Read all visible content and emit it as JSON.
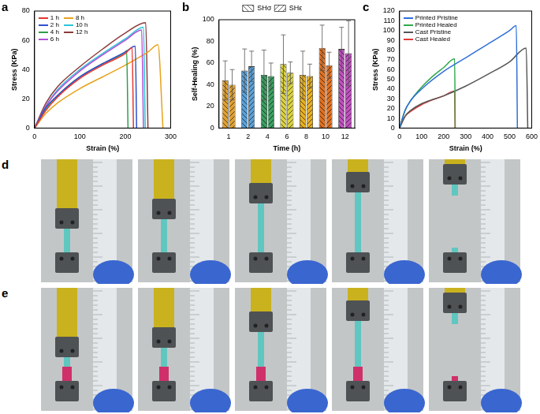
{
  "chart_data": [
    {
      "type": "line",
      "title": "a",
      "xlabel": "Strain (%)",
      "ylabel": "Stress (KPa)",
      "xlim": [
        0,
        300
      ],
      "xticks": [
        0,
        100,
        200,
        300
      ],
      "ylim": [
        0,
        80
      ],
      "yticks": [
        0,
        20,
        40,
        60,
        80
      ],
      "legend": "upper left",
      "series": [
        {
          "name": "1 h",
          "color": "#e8352e",
          "x": [
            0,
            25,
            50,
            100,
            150,
            200,
            215,
            218
          ],
          "values": [
            0,
            12,
            21,
            34,
            43,
            51,
            55,
            0
          ]
        },
        {
          "name": "2 h",
          "color": "#2f4fd0",
          "x": [
            0,
            25,
            50,
            100,
            150,
            200,
            222,
            225
          ],
          "values": [
            0,
            14,
            22,
            35,
            44,
            52,
            56,
            0
          ]
        },
        {
          "name": "4 h",
          "color": "#2e9e4a",
          "x": [
            0,
            25,
            50,
            100,
            150,
            200,
            203,
            206
          ],
          "values": [
            0,
            13,
            22,
            35,
            44,
            52,
            53,
            0
          ]
        },
        {
          "name": "6 h",
          "color": "#b04fd8",
          "x": [
            0,
            25,
            50,
            100,
            150,
            200,
            236,
            240
          ],
          "values": [
            0,
            15,
            25,
            39,
            50,
            60,
            67,
            0
          ]
        },
        {
          "name": "8 h",
          "color": "#e8a21a",
          "x": [
            0,
            25,
            50,
            100,
            150,
            200,
            250,
            272,
            283
          ],
          "values": [
            0,
            10,
            17,
            27,
            35,
            43,
            52,
            57,
            0
          ]
        },
        {
          "name": "10 h",
          "color": "#2ec4d8",
          "x": [
            0,
            25,
            50,
            100,
            150,
            200,
            240,
            244
          ],
          "values": [
            0,
            15,
            26,
            40,
            51,
            61,
            69,
            0
          ]
        },
        {
          "name": "12 h",
          "color": "#8b3a3a",
          "x": [
            0,
            25,
            50,
            100,
            150,
            200,
            245,
            250
          ],
          "values": [
            0,
            17,
            28,
            42,
            54,
            65,
            72,
            0
          ]
        }
      ]
    },
    {
      "type": "bar",
      "title": "b",
      "xlabel": "Time (h)",
      "ylabel": "Self-Healing (%)",
      "categories": [
        "1",
        "2",
        "4",
        "6",
        "8",
        "10",
        "12"
      ],
      "ylim": [
        0,
        100
      ],
      "yticks": [
        0,
        20,
        40,
        60,
        80,
        100
      ],
      "legend": "top",
      "series": [
        {
          "name": "SHσ",
          "colors": [
            "#e0a030",
            "#5aa0d8",
            "#3aa060",
            "#d8d040",
            "#e8b020",
            "#e07020",
            "#c050c0"
          ],
          "values": [
            44,
            53,
            49,
            59,
            49,
            74,
            73
          ],
          "errors": [
            18,
            20,
            23,
            27,
            22,
            21,
            20
          ]
        },
        {
          "name": "SHε",
          "colors": [
            "#e0a030",
            "#5aa0d8",
            "#3aa060",
            "#d8d040",
            "#e8b020",
            "#e07020",
            "#c050c0"
          ],
          "values": [
            40,
            57,
            48,
            51,
            48,
            58,
            69
          ],
          "errors": [
            14,
            14,
            12,
            10,
            11,
            12,
            30
          ]
        }
      ]
    },
    {
      "type": "line",
      "title": "c",
      "xlabel": "Strain (%)",
      "ylabel": "Stress (KPa)",
      "xlim": [
        0,
        600
      ],
      "xticks": [
        0,
        100,
        200,
        300,
        400,
        500,
        600
      ],
      "ylim": [
        0,
        120
      ],
      "yticks": [
        0,
        10,
        20,
        30,
        40,
        50,
        60,
        70,
        80,
        90,
        100,
        110,
        120
      ],
      "legend": "upper left",
      "series": [
        {
          "name": "Printed Pristine",
          "color": "#2f6fd8",
          "x": [
            0,
            25,
            50,
            100,
            200,
            300,
            400,
            500,
            530,
            535
          ],
          "values": [
            0,
            18,
            28,
            40,
            58,
            72,
            86,
            100,
            105,
            0
          ]
        },
        {
          "name": "Printed Healed",
          "color": "#2eaa4a",
          "x": [
            0,
            25,
            50,
            100,
            150,
            200,
            250,
            253
          ],
          "values": [
            0,
            18,
            28,
            42,
            53,
            62,
            71,
            0
          ]
        },
        {
          "name": "Cast  Pristine",
          "color": "#555555",
          "x": [
            0,
            25,
            50,
            100,
            200,
            300,
            400,
            500,
            575,
            582
          ],
          "values": [
            0,
            12,
            18,
            25,
            33,
            43,
            55,
            68,
            82,
            0
          ]
        },
        {
          "name": "Cast  Healed",
          "color": "#e03a3a",
          "x": [
            0,
            25,
            50,
            100,
            150,
            200,
            250,
            252
          ],
          "values": [
            0,
            12,
            17,
            24,
            29,
            33,
            38,
            0
          ]
        }
      ]
    }
  ],
  "photo_panels": [
    {
      "label": "d"
    },
    {
      "label": "e"
    }
  ]
}
